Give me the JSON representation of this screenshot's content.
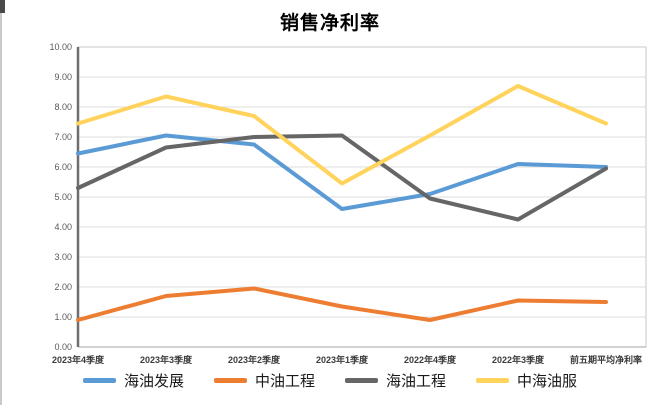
{
  "chart_data": {
    "type": "line",
    "title": "销售净利率",
    "categories": [
      "2023年4季度",
      "2023年3季度",
      "2023年2季度",
      "2023年1季度",
      "2022年4季度",
      "2022年3季度",
      "前五期平均净利率"
    ],
    "series": [
      {
        "name": "海油发展",
        "color": "#5B9BD5",
        "values": [
          6.45,
          7.05,
          6.75,
          4.6,
          5.1,
          6.1,
          6.0
        ]
      },
      {
        "name": "中油工程",
        "color": "#ED7D31",
        "values": [
          0.9,
          1.7,
          1.95,
          1.35,
          0.9,
          1.55,
          1.5
        ]
      },
      {
        "name": "海油工程",
        "color": "#666666",
        "values": [
          5.3,
          6.65,
          7.0,
          7.05,
          4.95,
          4.25,
          5.95
        ]
      },
      {
        "name": "中海油服",
        "color": "#FFD35C",
        "values": [
          7.45,
          8.35,
          7.7,
          5.45,
          7.05,
          8.7,
          7.45
        ]
      }
    ],
    "ylim": [
      0,
      10
    ],
    "y_tick_labels": [
      "0.00",
      "1.00",
      "2.00",
      "3.00",
      "4.00",
      "5.00",
      "6.00",
      "7.00",
      "8.00",
      "9.00",
      "10.00"
    ],
    "xlabel": "",
    "ylabel": "",
    "grid": "horizontal",
    "legend_position": "bottom",
    "gridline_color": "#dcdcdc",
    "axis_color": "#6e6e6e",
    "border_color": "#c9c9c9"
  }
}
